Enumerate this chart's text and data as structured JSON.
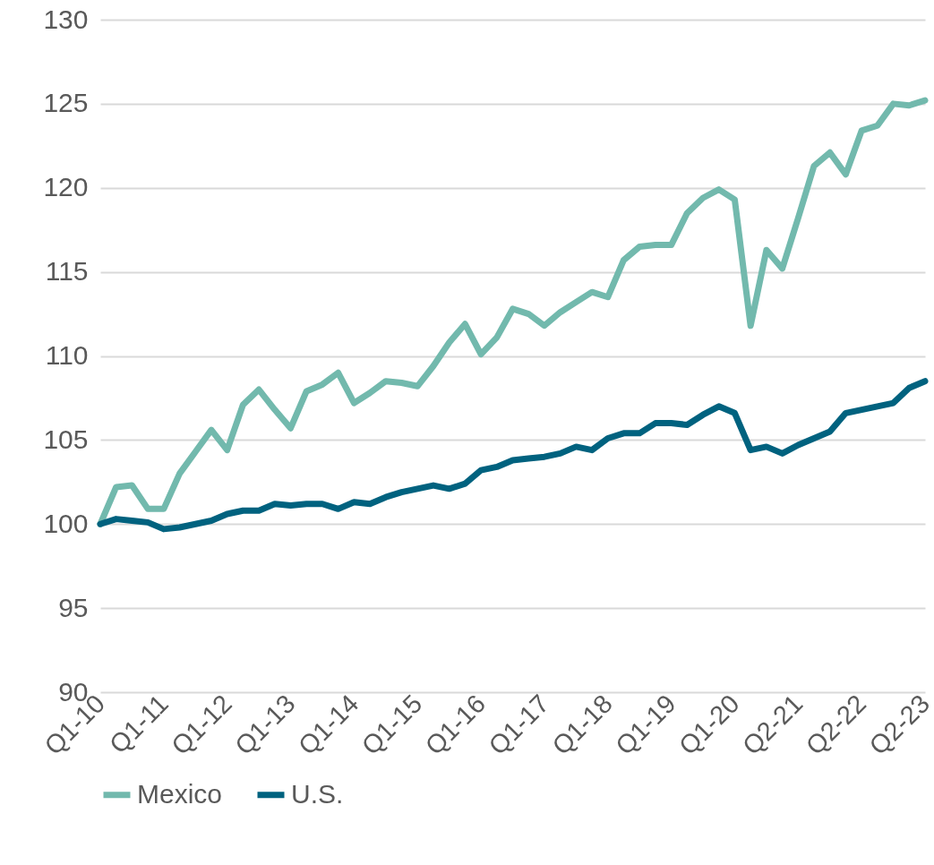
{
  "chart_data": {
    "type": "line",
    "categories": [
      "Q1-10",
      null,
      null,
      null,
      "Q1-11",
      null,
      null,
      null,
      "Q1-12",
      null,
      null,
      null,
      "Q1-13",
      null,
      null,
      null,
      "Q1-14",
      null,
      null,
      null,
      "Q1-15",
      null,
      null,
      null,
      "Q1-16",
      null,
      null,
      null,
      "Q1-17",
      null,
      null,
      null,
      "Q1-18",
      null,
      null,
      null,
      "Q1-19",
      null,
      null,
      null,
      "Q1-20",
      null,
      null,
      null,
      "Q2-21",
      null,
      null,
      null,
      "Q2-22",
      null,
      null,
      null,
      "Q2-23"
    ],
    "series": [
      {
        "name": "Mexico",
        "color": "#72b9ad",
        "values": [
          100.0,
          102.2,
          102.3,
          100.9,
          100.9,
          103.0,
          104.3,
          105.6,
          104.4,
          107.1,
          108.0,
          106.8,
          105.7,
          107.9,
          108.3,
          109.0,
          107.2,
          107.8,
          108.5,
          108.4,
          108.2,
          109.4,
          110.8,
          111.9,
          110.1,
          111.1,
          112.8,
          112.5,
          111.8,
          112.6,
          113.2,
          113.8,
          113.5,
          115.7,
          116.5,
          116.6,
          116.6,
          118.5,
          119.4,
          119.9,
          119.3,
          111.8,
          116.3,
          115.2,
          118.2,
          121.3,
          122.1,
          120.8,
          123.4,
          123.7,
          125.0,
          124.9,
          125.2
        ]
      },
      {
        "name": "U.S.",
        "color": "#00627f",
        "values": [
          100.0,
          100.3,
          100.2,
          100.1,
          99.7,
          99.8,
          100.0,
          100.2,
          100.6,
          100.8,
          100.8,
          101.2,
          101.1,
          101.2,
          101.2,
          100.9,
          101.3,
          101.2,
          101.6,
          101.9,
          102.1,
          102.3,
          102.1,
          102.4,
          103.2,
          103.4,
          103.8,
          103.9,
          104.0,
          104.2,
          104.6,
          104.4,
          105.1,
          105.4,
          105.4,
          106.0,
          106.0,
          105.9,
          106.5,
          107.0,
          106.6,
          104.4,
          104.6,
          104.2,
          104.7,
          105.1,
          105.5,
          106.6,
          106.8,
          107.0,
          107.2,
          108.1,
          108.5
        ]
      }
    ],
    "ylim": [
      90,
      130
    ],
    "yticks": [
      90,
      95,
      100,
      105,
      110,
      115,
      120,
      125,
      130
    ],
    "grid": "y",
    "legend": "bottom",
    "line_style": "solid"
  }
}
